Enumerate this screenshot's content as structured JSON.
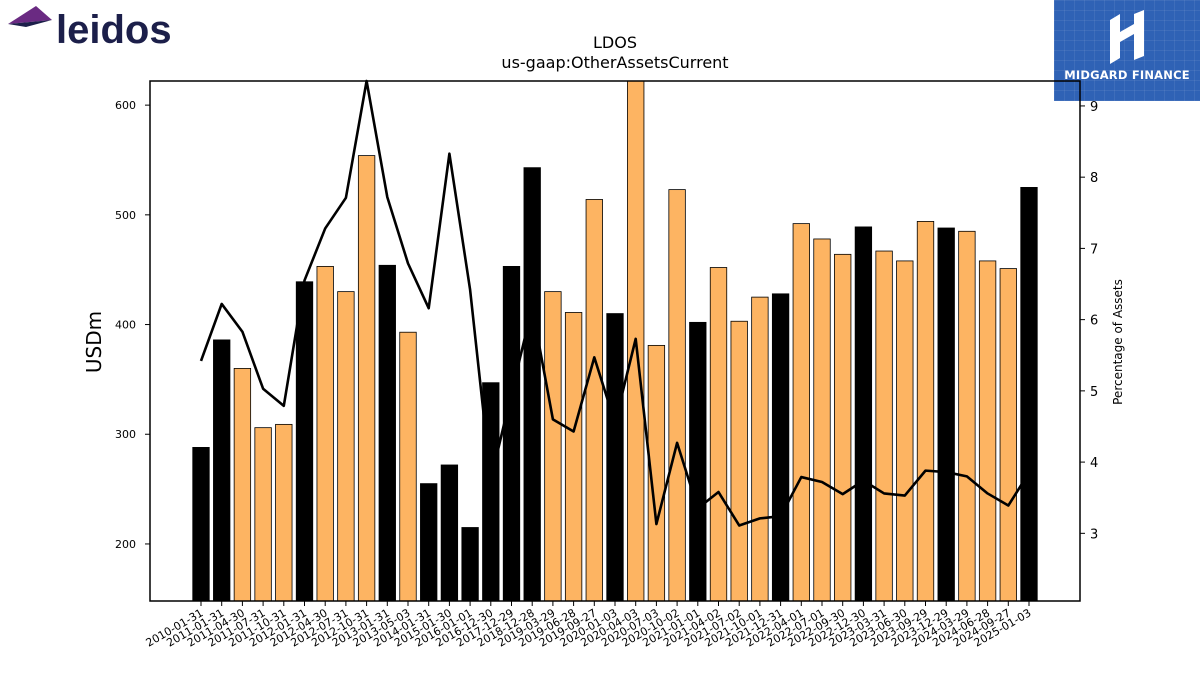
{
  "header": {
    "left_logo_text": "leidos",
    "right_logo_text": "MIDGARD FINANCE"
  },
  "colors": {
    "bar_orange": "#fdb462",
    "bar_black": "#000000",
    "line": "#000000",
    "logo_blue": "#2f62b5",
    "leidos_navy": "#1c1f4a",
    "leidos_purple": "#6a2a82"
  },
  "chart_data": {
    "type": "bar",
    "title": "LDOS",
    "subtitle": "us-gaap:OtherAssetsCurrent",
    "ylabel": "USDm",
    "y2label": "Percentage of Assets",
    "ylim": [
      148,
      622
    ],
    "y2lim": [
      2.05,
      9.35
    ],
    "yticks": [
      200,
      300,
      400,
      500,
      600
    ],
    "y2ticks": [
      3,
      4,
      5,
      6,
      7,
      8,
      9
    ],
    "categories": [
      "2010-01-31",
      "2011-01-31",
      "2011-04-30",
      "2011-07-31",
      "2011-10-31",
      "2012-01-31",
      "2012-04-30",
      "2012-07-31",
      "2012-10-31",
      "2013-01-31",
      "2013-05-03",
      "2014-01-31",
      "2015-01-30",
      "2016-01-01",
      "2016-12-30",
      "2017-12-29",
      "2018-12-28",
      "2019-03-29",
      "2019-06-28",
      "2019-09-27",
      "2020-01-03",
      "2020-04-03",
      "2020-07-03",
      "2020-10-02",
      "2021-01-01",
      "2021-04-02",
      "2021-07-02",
      "2021-10-01",
      "2021-12-31",
      "2022-04-01",
      "2022-07-01",
      "2022-09-30",
      "2022-12-30",
      "2023-03-31",
      "2023-06-30",
      "2023-09-29",
      "2023-12-29",
      "2024-03-29",
      "2024-06-28",
      "2024-09-27",
      "2025-01-03"
    ],
    "series": [
      {
        "values": [
          288,
          386,
          360,
          306,
          309,
          439,
          453,
          430,
          554,
          454,
          393,
          255,
          272,
          215,
          347,
          453,
          543,
          430,
          411,
          514,
          410,
          622,
          381,
          523,
          402,
          452,
          403,
          425,
          428,
          492,
          478,
          464,
          489,
          467,
          458,
          494,
          488,
          485,
          458,
          451,
          525
        ],
        "bar_colors": [
          "black",
          "black",
          "orange",
          "orange",
          "orange",
          "black",
          "orange",
          "orange",
          "orange",
          "black",
          "orange",
          "black",
          "black",
          "black",
          "black",
          "black",
          "black",
          "orange",
          "orange",
          "orange",
          "black",
          "orange",
          "orange",
          "orange",
          "black",
          "orange",
          "orange",
          "orange",
          "black",
          "orange",
          "orange",
          "orange",
          "black",
          "orange",
          "orange",
          "orange",
          "black",
          "orange",
          "orange",
          "orange",
          "black"
        ]
      },
      {
        "values": [
          5.42,
          6.22,
          5.83,
          5.03,
          4.79,
          6.55,
          7.28,
          7.71,
          9.35,
          7.72,
          6.79,
          6.16,
          8.33,
          6.42,
          3.75,
          4.97,
          6.17,
          4.6,
          4.43,
          5.47,
          4.55,
          5.73,
          3.13,
          4.27,
          3.35,
          3.58,
          3.11,
          3.21,
          3.24,
          3.79,
          3.72,
          3.55,
          3.74,
          3.56,
          3.53,
          3.88,
          3.86,
          3.8,
          3.56,
          3.39,
          3.85
        ],
        "axis": "right"
      }
    ]
  }
}
